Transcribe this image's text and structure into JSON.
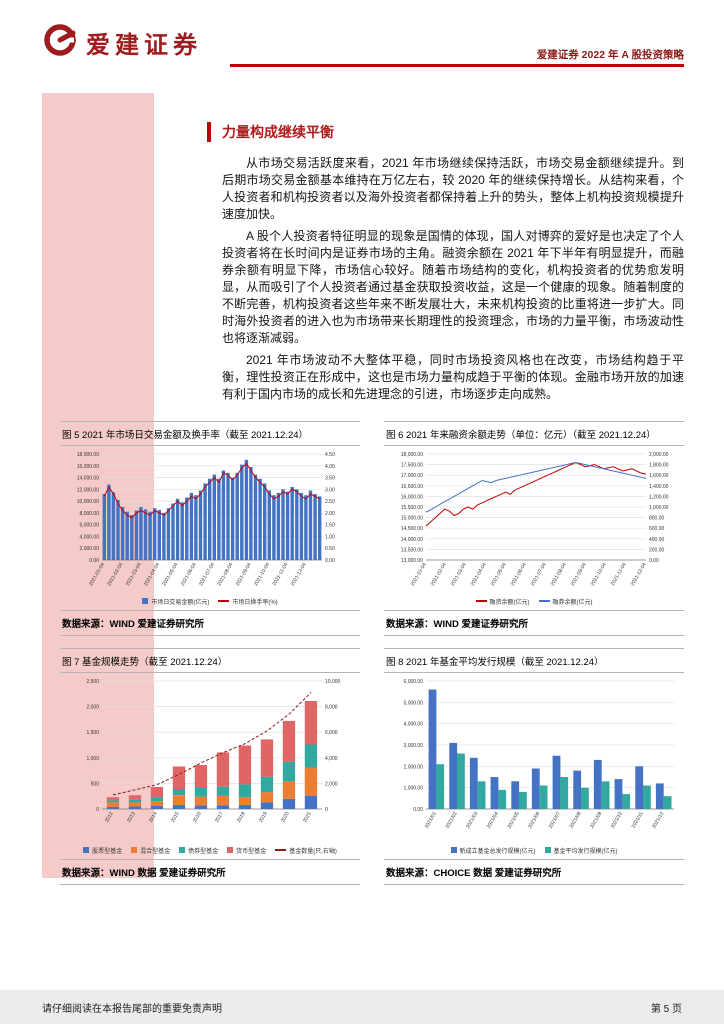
{
  "header": {
    "logo_text": "爱建证券",
    "report_title": "爱建证券 2022 年 A 股投资策略"
  },
  "section": {
    "title": "力量构成继续平衡",
    "paragraphs": [
      "从市场交易活跃度来看，2021 年市场继续保持活跃，市场交易金额继续提升。到后期市场交易金额基本维持在万亿左右，较 2020 年的继续保持增长。从结构来看，个人投资者和机构投资者以及海外投资者都保持着上升的势头，整体上机构投资规模提升速度加快。",
      "A 股个人投资者特征明显的现象是国情的体现，国人对博弈的爱好是也决定了个人投资者将在长时间内是证券市场的主角。融资余额在 2021 年下半年有明显提升，而融券余额有明显下降，市场信心较好。随着市场结构的变化，机构投资者的优势愈发明显，从而吸引了个人投资者通过基金获取投资收益，这是一个健康的现象。随着制度的不断完善，机构投资者这些年来不断发展壮大，未来机构投资的比重将进一步扩大。同时海外投资者的进入也为市场带来长期理性的投资理念，市场的力量平衡，市场波动性也将逐渐减弱。",
      "2021 年市场波动不大整体平稳，同时市场投资风格也在改变，市场结构趋于平衡，理性投资正在形成中，这也是市场力量构成趋于平衡的体现。金融市场开放的加速有利于国内市场的成长和先进理念的引进，市场逐步走向成熟。"
    ]
  },
  "figures": [
    {
      "title": "图 5 2021 年市场日交易金额及换手率（截至 2021.12.24）",
      "source": "数据来源：WIND 爱建证券研究所"
    },
    {
      "title": "图 6 2021 年来融资余额走势（单位：亿元）（截至 2021.12.24）",
      "source": "数据来源：WIND 爱建证券研究所"
    },
    {
      "title": "图 7 基金规模走势（截至 2021.12.24）",
      "source": "数据来源：WIND 数据 爱建证券研究所"
    },
    {
      "title": "图 8 2021 年基金平均发行规模（截至 2021.12.24）",
      "source": "数据来源：CHOICE 数据 爱建证券研究所"
    }
  ],
  "footer": {
    "disclaimer": "请仔细阅读在本报告尾部的重要免责声明",
    "page_number": "第 5 页"
  },
  "colors": {
    "brand_red": "#9E1B1E",
    "accent_red": "#C00000",
    "sidebar_pink": "#F4CBC8",
    "bar_blue": "#4472C4",
    "teal": "#31A8A0",
    "orange": "#ED7D31",
    "salmon": "#E06666",
    "footer_gray": "#ECECEC"
  },
  "chart_data": [
    {
      "type": "bar",
      "title": "图 5 2021 年市场日交易金额及换手率（截至 2021.12.24）",
      "x_ticks": [
        "2021-01-04",
        "2021-02-04",
        "2021-03-04",
        "2021-04-04",
        "2021-05-04",
        "2021-06-04",
        "2021-07-04",
        "2021-08-04",
        "2021-09-04",
        "2021-10-04",
        "2021-11-04",
        "2021-12-04"
      ],
      "y_left": {
        "min": 0,
        "max": 18000,
        "step": 2000,
        "dec": 2
      },
      "y_right": {
        "min": 0,
        "max": 4.5,
        "step": 0.5,
        "dec": 2
      },
      "series": [
        {
          "name": "市场日交易金额(亿元)",
          "type": "bar",
          "axis": "left",
          "color": "#4472C4",
          "values": [
            11200,
            12800,
            11500,
            10200,
            9000,
            8200,
            7600,
            8400,
            9000,
            8600,
            8200,
            8800,
            8500,
            8000,
            8800,
            9600,
            10400,
            9800,
            10600,
            11400,
            11000,
            11800,
            13000,
            13800,
            14500,
            13800,
            15200,
            14800,
            14000,
            14800,
            16200,
            17000,
            15800,
            14500,
            13800,
            13000,
            11800,
            11000,
            11400,
            12000,
            11600,
            12400,
            12000,
            11400,
            11000,
            11800,
            11200,
            10800
          ]
        },
        {
          "name": "市场日换手率(%)",
          "type": "line",
          "axis": "right",
          "color": "#C00000",
          "values": [
            2.7,
            3.1,
            2.8,
            2.4,
            2.1,
            1.9,
            1.8,
            2.0,
            2.1,
            2.0,
            1.9,
            2.1,
            2.0,
            1.9,
            2.1,
            2.3,
            2.5,
            2.3,
            2.5,
            2.7,
            2.6,
            2.8,
            3.1,
            3.3,
            3.5,
            3.3,
            3.7,
            3.6,
            3.4,
            3.6,
            3.9,
            4.1,
            3.8,
            3.5,
            3.3,
            3.1,
            2.8,
            2.6,
            2.7,
            2.9,
            2.8,
            3.0,
            2.9,
            2.7,
            2.6,
            2.8,
            2.7,
            2.6
          ]
        }
      ]
    },
    {
      "type": "line",
      "title": "图 6 2021 年来融资余额走势（单位：亿元）（截至 2021.12.24）",
      "x_ticks": [
        "2021-01-04",
        "2021-02-04",
        "2021-03-04",
        "2021-04-04",
        "2021-05-04",
        "2021-06-04",
        "2021-07-04",
        "2021-08-04",
        "2021-09-04",
        "2021-10-04",
        "2021-11-04",
        "2021-12-04"
      ],
      "y_left": {
        "min": 13000,
        "max": 18000,
        "step": 500,
        "dec": 2
      },
      "y_right": {
        "min": 0,
        "max": 2000,
        "step": 200,
        "dec": 2
      },
      "series": [
        {
          "name": "融资余额(亿元)",
          "type": "line",
          "axis": "left",
          "color": "#C00000",
          "values": [
            14600,
            14800,
            15000,
            15200,
            15400,
            15300,
            15100,
            15200,
            15400,
            15500,
            15400,
            15600,
            15700,
            15800,
            15900,
            16000,
            16100,
            16200,
            16100,
            16300,
            16400,
            16500,
            16600,
            16700,
            16800,
            16900,
            17000,
            17100,
            17200,
            17300,
            17400,
            17500,
            17600,
            17500,
            17400,
            17450,
            17500,
            17400,
            17300,
            17350,
            17400,
            17300,
            17200,
            17250,
            17300,
            17200,
            17100,
            17050
          ]
        },
        {
          "name": "融券余额(亿元)",
          "type": "line",
          "axis": "right",
          "color": "#4472C4",
          "values": [
            900,
            950,
            1000,
            1050,
            1100,
            1150,
            1200,
            1250,
            1300,
            1350,
            1400,
            1450,
            1500,
            1480,
            1460,
            1500,
            1520,
            1540,
            1560,
            1580,
            1600,
            1620,
            1640,
            1660,
            1680,
            1700,
            1720,
            1740,
            1760,
            1780,
            1800,
            1820,
            1840,
            1820,
            1800,
            1780,
            1760,
            1740,
            1720,
            1700,
            1680,
            1660,
            1640,
            1620,
            1600,
            1580,
            1560,
            1540
          ]
        }
      ]
    },
    {
      "type": "stacked-bar",
      "stacked": true,
      "title": "图 7 基金规模走势（截至 2021.12.24）",
      "categories": [
        "2012",
        "2013",
        "2014",
        "2015",
        "2016",
        "2017",
        "2018",
        "2019",
        "2020",
        "2021"
      ],
      "y_left": {
        "min": 0,
        "max": 2500,
        "step": 500,
        "dec": 0
      },
      "y_right": {
        "min": 0,
        "max": 10000,
        "step": 2000,
        "dec": 0
      },
      "series": [
        {
          "name": "股票型基金",
          "type": "bar",
          "axis": "left",
          "color": "#4472C4",
          "values": [
            40,
            50,
            60,
            80,
            70,
            75,
            80,
            130,
            200,
            260
          ]
        },
        {
          "name": "混合型基金",
          "type": "bar",
          "axis": "left",
          "color": "#ED7D31",
          "values": [
            90,
            80,
            90,
            190,
            170,
            180,
            150,
            200,
            340,
            550
          ]
        },
        {
          "name": "债券型基金",
          "type": "bar",
          "axis": "left",
          "color": "#31A8A0",
          "values": [
            40,
            50,
            80,
            120,
            190,
            180,
            250,
            300,
            380,
            450
          ]
        },
        {
          "name": "货币型基金",
          "type": "bar",
          "axis": "left",
          "color": "#E06666",
          "values": [
            60,
            90,
            200,
            440,
            430,
            670,
            760,
            730,
            800,
            850
          ]
        },
        {
          "name": "基金数量(只,右轴)",
          "type": "line",
          "axis": "right",
          "color": "#8B1A1A",
          "dash": true,
          "values": [
            1100,
            1500,
            1900,
            2700,
            3600,
            4400,
            5100,
            6100,
            7400,
            9100
          ]
        }
      ]
    },
    {
      "type": "grouped-bar",
      "title": "图 8 2021 年基金平均发行规模（截至 2021.12.24）",
      "categories": [
        "2021/01",
        "2021/02",
        "2021/03",
        "2021/04",
        "2021/05",
        "2021/06",
        "2021/07",
        "2021/08",
        "2021/09",
        "2021/10",
        "2021/11",
        "2021/12"
      ],
      "y_left": {
        "min": 0,
        "max": 6000,
        "step": 1000,
        "dec": 2
      },
      "series": [
        {
          "name": "新成立基金总发行规模(亿元)",
          "type": "bar",
          "axis": "left",
          "color": "#4472C4",
          "values": [
            5600,
            3100,
            2400,
            1500,
            1300,
            1900,
            2500,
            1800,
            2300,
            1400,
            2000,
            1200
          ]
        },
        {
          "name": "基金平均发行规模(亿元)",
          "type": "bar",
          "axis": "left",
          "color": "#31A8A0",
          "values": [
            2100,
            2600,
            1300,
            900,
            800,
            1100,
            1500,
            1000,
            1300,
            700,
            1100,
            600
          ]
        }
      ]
    }
  ]
}
